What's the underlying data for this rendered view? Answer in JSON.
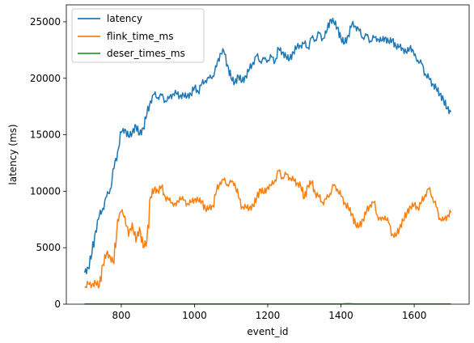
{
  "chart_data": {
    "type": "line",
    "xlabel": "event_id",
    "ylabel": "latency (ms)",
    "xlim": [
      650,
      1750
    ],
    "ylim": [
      0,
      26500
    ],
    "xticks": [
      800,
      1000,
      1200,
      1400,
      1600
    ],
    "yticks": [
      0,
      5000,
      10000,
      15000,
      20000,
      25000
    ],
    "grid": false,
    "legend_position": "top-left",
    "series": [
      {
        "name": "latency",
        "color": "#1f77b4",
        "points": [
          [
            700,
            2800
          ],
          [
            710,
            3200
          ],
          [
            720,
            4500
          ],
          [
            730,
            6500
          ],
          [
            740,
            7800
          ],
          [
            750,
            8500
          ],
          [
            760,
            9500
          ],
          [
            770,
            10200
          ],
          [
            780,
            12000
          ],
          [
            790,
            13500
          ],
          [
            800,
            15200
          ],
          [
            810,
            15500
          ],
          [
            820,
            14800
          ],
          [
            830,
            15200
          ],
          [
            840,
            15800
          ],
          [
            850,
            15000
          ],
          [
            860,
            15600
          ],
          [
            870,
            16800
          ],
          [
            880,
            18000
          ],
          [
            890,
            18600
          ],
          [
            900,
            18300
          ],
          [
            910,
            18500
          ],
          [
            920,
            18000
          ],
          [
            930,
            18200
          ],
          [
            940,
            18600
          ],
          [
            950,
            18700
          ],
          [
            960,
            18400
          ],
          [
            970,
            18500
          ],
          [
            980,
            18400
          ],
          [
            990,
            18600
          ],
          [
            1000,
            19200
          ],
          [
            1010,
            18800
          ],
          [
            1020,
            19500
          ],
          [
            1030,
            19800
          ],
          [
            1040,
            20000
          ],
          [
            1050,
            20200
          ],
          [
            1060,
            21000
          ],
          [
            1070,
            22200
          ],
          [
            1080,
            22400
          ],
          [
            1090,
            21200
          ],
          [
            1100,
            20000
          ],
          [
            1110,
            19600
          ],
          [
            1120,
            20200
          ],
          [
            1130,
            19700
          ],
          [
            1140,
            20200
          ],
          [
            1150,
            20800
          ],
          [
            1160,
            21400
          ],
          [
            1170,
            22000
          ],
          [
            1180,
            21500
          ],
          [
            1190,
            21700
          ],
          [
            1200,
            21600
          ],
          [
            1210,
            21900
          ],
          [
            1220,
            21500
          ],
          [
            1230,
            22600
          ],
          [
            1240,
            22300
          ],
          [
            1250,
            21900
          ],
          [
            1260,
            21700
          ],
          [
            1270,
            22300
          ],
          [
            1280,
            22800
          ],
          [
            1290,
            22900
          ],
          [
            1300,
            23100
          ],
          [
            1310,
            22700
          ],
          [
            1320,
            23600
          ],
          [
            1330,
            23400
          ],
          [
            1340,
            24000
          ],
          [
            1350,
            23500
          ],
          [
            1360,
            24000
          ],
          [
            1370,
            25200
          ],
          [
            1380,
            25000
          ],
          [
            1390,
            24500
          ],
          [
            1400,
            23500
          ],
          [
            1410,
            23100
          ],
          [
            1420,
            23800
          ],
          [
            1430,
            24800
          ],
          [
            1440,
            24600
          ],
          [
            1450,
            24200
          ],
          [
            1460,
            23600
          ],
          [
            1470,
            23800
          ],
          [
            1480,
            23300
          ],
          [
            1490,
            23600
          ],
          [
            1500,
            23500
          ],
          [
            1510,
            23300
          ],
          [
            1520,
            23600
          ],
          [
            1530,
            23200
          ],
          [
            1540,
            23400
          ],
          [
            1550,
            22800
          ],
          [
            1560,
            22800
          ],
          [
            1570,
            22600
          ],
          [
            1580,
            22200
          ],
          [
            1590,
            22900
          ],
          [
            1600,
            22000
          ],
          [
            1610,
            21600
          ],
          [
            1620,
            21300
          ],
          [
            1630,
            20400
          ],
          [
            1640,
            20000
          ],
          [
            1650,
            19500
          ],
          [
            1660,
            19100
          ],
          [
            1670,
            18600
          ],
          [
            1680,
            18100
          ],
          [
            1690,
            17300
          ],
          [
            1700,
            17000
          ]
        ]
      },
      {
        "name": "flink_time_ms",
        "color": "#ff7f0e",
        "points": [
          [
            700,
            1500
          ],
          [
            710,
            1800
          ],
          [
            720,
            1700
          ],
          [
            730,
            1900
          ],
          [
            740,
            1600
          ],
          [
            750,
            3500
          ],
          [
            760,
            4500
          ],
          [
            770,
            4200
          ],
          [
            780,
            3600
          ],
          [
            790,
            7500
          ],
          [
            800,
            8200
          ],
          [
            810,
            7800
          ],
          [
            820,
            6000
          ],
          [
            830,
            7200
          ],
          [
            840,
            5500
          ],
          [
            850,
            6800
          ],
          [
            860,
            5000
          ],
          [
            870,
            5600
          ],
          [
            880,
            9500
          ],
          [
            890,
            10200
          ],
          [
            900,
            10000
          ],
          [
            910,
            10400
          ],
          [
            920,
            9500
          ],
          [
            930,
            9200
          ],
          [
            940,
            9000
          ],
          [
            950,
            8700
          ],
          [
            960,
            9500
          ],
          [
            970,
            9200
          ],
          [
            980,
            8900
          ],
          [
            990,
            9000
          ],
          [
            1000,
            9300
          ],
          [
            1010,
            9200
          ],
          [
            1020,
            9100
          ],
          [
            1030,
            8400
          ],
          [
            1040,
            8500
          ],
          [
            1050,
            8700
          ],
          [
            1060,
            10000
          ],
          [
            1070,
            10800
          ],
          [
            1080,
            11000
          ],
          [
            1090,
            10600
          ],
          [
            1100,
            10800
          ],
          [
            1110,
            10700
          ],
          [
            1120,
            9500
          ],
          [
            1130,
            8600
          ],
          [
            1140,
            8600
          ],
          [
            1150,
            8500
          ],
          [
            1160,
            8700
          ],
          [
            1170,
            9400
          ],
          [
            1180,
            10200
          ],
          [
            1190,
            9800
          ],
          [
            1200,
            10400
          ],
          [
            1210,
            10500
          ],
          [
            1220,
            11000
          ],
          [
            1230,
            11800
          ],
          [
            1240,
            11200
          ],
          [
            1250,
            11500
          ],
          [
            1260,
            11200
          ],
          [
            1270,
            11000
          ],
          [
            1280,
            10700
          ],
          [
            1290,
            10500
          ],
          [
            1300,
            9400
          ],
          [
            1310,
            10500
          ],
          [
            1320,
            10800
          ],
          [
            1330,
            9800
          ],
          [
            1340,
            9500
          ],
          [
            1350,
            9000
          ],
          [
            1360,
            9300
          ],
          [
            1370,
            9800
          ],
          [
            1380,
            10500
          ],
          [
            1390,
            10200
          ],
          [
            1400,
            9600
          ],
          [
            1410,
            9000
          ],
          [
            1420,
            8500
          ],
          [
            1430,
            8000
          ],
          [
            1440,
            7000
          ],
          [
            1450,
            6900
          ],
          [
            1460,
            7500
          ],
          [
            1470,
            8200
          ],
          [
            1480,
            8800
          ],
          [
            1490,
            9000
          ],
          [
            1500,
            7800
          ],
          [
            1510,
            7400
          ],
          [
            1520,
            7800
          ],
          [
            1530,
            7200
          ],
          [
            1540,
            6200
          ],
          [
            1550,
            6000
          ],
          [
            1560,
            6800
          ],
          [
            1570,
            7400
          ],
          [
            1580,
            8100
          ],
          [
            1590,
            8600
          ],
          [
            1600,
            8800
          ],
          [
            1610,
            8500
          ],
          [
            1620,
            9000
          ],
          [
            1630,
            9700
          ],
          [
            1640,
            10200
          ],
          [
            1650,
            9500
          ],
          [
            1660,
            8600
          ],
          [
            1670,
            7600
          ],
          [
            1680,
            7400
          ],
          [
            1690,
            7800
          ],
          [
            1700,
            8100
          ]
        ]
      },
      {
        "name": "deser_times_ms",
        "color": "#2ca02c",
        "points": [
          [
            700,
            20
          ],
          [
            800,
            15
          ],
          [
            900,
            18
          ],
          [
            1000,
            20
          ],
          [
            1100,
            15
          ],
          [
            1200,
            20
          ],
          [
            1300,
            18
          ],
          [
            1400,
            25
          ],
          [
            1420,
            60
          ],
          [
            1440,
            20
          ],
          [
            1500,
            18
          ],
          [
            1600,
            20
          ],
          [
            1700,
            15
          ]
        ]
      }
    ]
  }
}
